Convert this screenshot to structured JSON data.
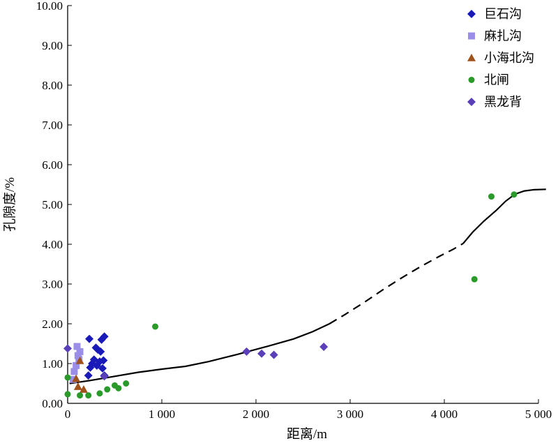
{
  "chart_data": {
    "type": "scatter",
    "title": "",
    "xlabel": "距离/m",
    "ylabel": "孔隙度/%",
    "xlim": [
      0,
      5000
    ],
    "ylim": [
      0,
      10
    ],
    "x_ticks": [
      0,
      1000,
      2000,
      3000,
      4000,
      5000
    ],
    "x_tick_labels": [
      "0",
      "1 000",
      "2 000",
      "3 000",
      "4 000",
      "5 000"
    ],
    "y_ticks": [
      0,
      1,
      2,
      3,
      4,
      5,
      6,
      7,
      8,
      9,
      10
    ],
    "y_tick_labels": [
      "0.00",
      "1.00",
      "2.00",
      "3.00",
      "4.00",
      "5.00",
      "6.00",
      "7.00",
      "8.00",
      "9.00",
      "10.00"
    ],
    "grid": false,
    "legend_position": "top-right",
    "series": [
      {
        "name": "巨石沟",
        "marker": "diamond",
        "color": "#1a1ab8",
        "points": [
          [
            230,
            1.62
          ],
          [
            390,
            1.68
          ],
          [
            360,
            1.6
          ],
          [
            300,
            1.4
          ],
          [
            320,
            1.35
          ],
          [
            350,
            1.3
          ],
          [
            280,
            1.1
          ],
          [
            340,
            1.05
          ],
          [
            380,
            1.08
          ],
          [
            260,
            1.0
          ],
          [
            310,
            0.95
          ],
          [
            240,
            0.9
          ],
          [
            370,
            0.88
          ],
          [
            220,
            0.7
          ],
          [
            390,
            0.7
          ]
        ]
      },
      {
        "name": "麻扎沟",
        "marker": "square",
        "color": "#9b8ee8",
        "points": [
          [
            100,
            1.43
          ],
          [
            130,
            1.3
          ],
          [
            110,
            1.2
          ],
          [
            120,
            1.1
          ],
          [
            90,
            0.95
          ],
          [
            70,
            0.8
          ],
          [
            60,
            0.6
          ]
        ]
      },
      {
        "name": "小海北沟",
        "marker": "triangle",
        "color": "#a0521c",
        "points": [
          [
            130,
            1.07
          ],
          [
            90,
            0.62
          ],
          [
            110,
            0.42
          ],
          [
            170,
            0.35
          ]
        ]
      },
      {
        "name": "北闸",
        "marker": "circle",
        "color": "#2a9a2a",
        "points": [
          [
            0,
            0.65
          ],
          [
            0,
            0.23
          ],
          [
            130,
            0.2
          ],
          [
            220,
            0.2
          ],
          [
            340,
            0.25
          ],
          [
            420,
            0.35
          ],
          [
            500,
            0.45
          ],
          [
            540,
            0.38
          ],
          [
            620,
            0.5
          ],
          [
            930,
            1.93
          ],
          [
            4320,
            3.12
          ],
          [
            4500,
            5.2
          ],
          [
            4740,
            5.25
          ]
        ]
      },
      {
        "name": "黑龙背",
        "marker": "diamond",
        "color": "#5a3fb8",
        "points": [
          [
            0,
            1.38
          ],
          [
            390,
            0.68
          ],
          [
            1900,
            1.3
          ],
          [
            2060,
            1.25
          ],
          [
            2190,
            1.22
          ],
          [
            2720,
            1.42
          ]
        ]
      }
    ],
    "trend_line": {
      "solid_1": [
        [
          20,
          0.5
        ],
        [
          200,
          0.56
        ],
        [
          450,
          0.66
        ],
        [
          750,
          0.78
        ],
        [
          1000,
          0.86
        ],
        [
          1250,
          0.93
        ],
        [
          1500,
          1.05
        ],
        [
          1800,
          1.23
        ],
        [
          2100,
          1.42
        ],
        [
          2400,
          1.62
        ],
        [
          2600,
          1.8
        ],
        [
          2780,
          2.0
        ]
      ],
      "dashed": [
        [
          2780,
          2.0
        ],
        [
          2950,
          2.24
        ],
        [
          3150,
          2.54
        ],
        [
          3350,
          2.86
        ],
        [
          3550,
          3.16
        ],
        [
          3750,
          3.44
        ],
        [
          3950,
          3.7
        ],
        [
          4100,
          3.88
        ],
        [
          4200,
          4.02
        ]
      ],
      "solid_2": [
        [
          4200,
          4.02
        ],
        [
          4300,
          4.3
        ],
        [
          4420,
          4.58
        ],
        [
          4550,
          4.85
        ],
        [
          4650,
          5.08
        ],
        [
          4750,
          5.26
        ],
        [
          4850,
          5.34
        ],
        [
          4950,
          5.37
        ],
        [
          5080,
          5.38
        ]
      ]
    }
  }
}
